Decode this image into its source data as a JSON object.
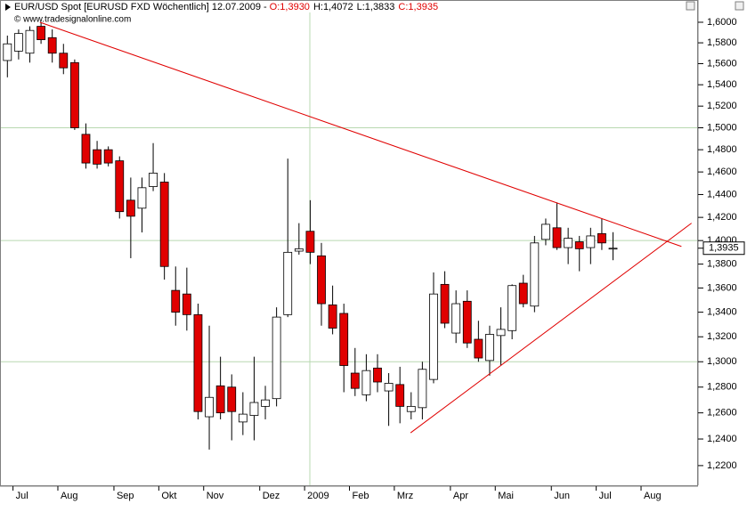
{
  "chart_data": {
    "type": "candlestick",
    "title": "EUR/USD Spot [EURUSD FXD  Wöchentlich] 12.07.2009 -",
    "ohlc_labels": [
      {
        "text": "O:1,3930",
        "color": "#e00000"
      },
      {
        "text": "H:1,4072",
        "color": "#000000"
      },
      {
        "text": "L:1,3833",
        "color": "#000000"
      },
      {
        "text": "C:1,3935",
        "color": "#e00000"
      }
    ],
    "subtitle": "© www.tradesignalonline.com",
    "categories": [
      null,
      "Jul",
      null,
      null,
      null,
      "Aug",
      null,
      null,
      null,
      null,
      "Sep",
      null,
      null,
      null,
      "Okt",
      null,
      null,
      null,
      "Nov",
      null,
      null,
      null,
      null,
      "Dez",
      null,
      null,
      null,
      "2009",
      null,
      null,
      null,
      "Feb",
      null,
      null,
      null,
      "Mrz",
      null,
      null,
      null,
      null,
      "Apr",
      null,
      null,
      null,
      "Mai",
      null,
      null,
      null,
      null,
      "Jun",
      null,
      null,
      null,
      "Jul",
      null,
      null,
      null,
      "Aug",
      null,
      null,
      null,
      null
    ],
    "open": [
      1.563,
      1.572,
      1.57,
      1.596,
      1.585,
      1.57,
      1.561,
      1.494,
      1.48,
      1.48,
      1.47,
      1.435,
      1.428,
      1.447,
      1.451,
      1.358,
      1.355,
      1.338,
      1.257,
      1.281,
      1.28,
      1.253,
      1.258,
      1.265,
      1.271,
      1.338,
      1.391,
      1.408,
      1.387,
      1.346,
      1.339,
      1.291,
      1.274,
      1.295,
      1.277,
      1.282,
      1.261,
      1.264,
      1.286,
      1.363,
      1.323,
      1.349,
      1.318,
      1.301,
      1.321,
      1.325,
      1.364,
      1.345,
      1.401,
      1.411,
      1.394,
      1.399,
      1.394,
      1.406,
      1.393,
      null,
      null,
      null,
      null,
      null,
      null,
      null
    ],
    "high": [
      1.587,
      1.593,
      1.596,
      1.6,
      1.593,
      1.579,
      1.564,
      1.504,
      1.488,
      1.483,
      1.474,
      1.455,
      1.455,
      1.486,
      1.459,
      1.378,
      1.377,
      1.347,
      1.329,
      1.304,
      1.29,
      1.276,
      1.304,
      1.281,
      1.344,
      1.472,
      1.415,
      1.435,
      1.398,
      1.362,
      1.347,
      1.311,
      1.306,
      1.306,
      1.291,
      1.296,
      1.276,
      1.3,
      1.373,
      1.374,
      1.358,
      1.358,
      1.333,
      1.329,
      1.344,
      1.363,
      1.371,
      1.404,
      1.419,
      1.433,
      1.411,
      1.404,
      1.411,
      1.419,
      1.4072,
      null,
      null,
      null,
      null,
      null,
      null,
      null
    ],
    "low": [
      1.547,
      1.564,
      1.561,
      1.579,
      1.561,
      1.55,
      1.498,
      1.463,
      1.463,
      1.465,
      1.419,
      1.385,
      1.407,
      1.443,
      1.367,
      1.329,
      1.325,
      1.255,
      1.232,
      1.255,
      1.239,
      1.243,
      1.239,
      1.255,
      1.265,
      1.336,
      1.388,
      1.38,
      1.329,
      1.322,
      1.276,
      1.273,
      1.269,
      1.276,
      1.25,
      1.252,
      1.255,
      1.255,
      1.283,
      1.327,
      1.315,
      1.311,
      1.3,
      1.289,
      1.297,
      1.318,
      1.344,
      1.34,
      1.396,
      1.392,
      1.38,
      1.374,
      1.38,
      1.392,
      1.3833,
      null,
      null,
      null,
      null,
      null,
      null,
      null
    ],
    "close": [
      1.579,
      1.589,
      1.592,
      1.583,
      1.57,
      1.556,
      1.5,
      1.468,
      1.467,
      1.468,
      1.425,
      1.421,
      1.446,
      1.459,
      1.378,
      1.34,
      1.338,
      1.261,
      1.272,
      1.26,
      1.261,
      1.259,
      1.268,
      1.27,
      1.336,
      1.39,
      1.393,
      1.39,
      1.347,
      1.327,
      1.297,
      1.279,
      1.293,
      1.284,
      1.283,
      1.265,
      1.265,
      1.294,
      1.355,
      1.331,
      1.347,
      1.315,
      1.303,
      1.322,
      1.326,
      1.362,
      1.347,
      1.398,
      1.414,
      1.394,
      1.402,
      1.393,
      1.404,
      1.398,
      1.3935,
      null,
      null,
      null,
      null,
      null,
      null,
      null
    ],
    "up_color": "#ffffff",
    "down_color": "#e00000",
    "log_scale": true,
    "ylim": [
      1.2054,
      1.6096
    ],
    "yticks": [
      {
        "value": 1.22,
        "label": "1,2200"
      },
      {
        "value": 1.24,
        "label": "1,2400"
      },
      {
        "value": 1.26,
        "label": "1,2600"
      },
      {
        "value": 1.28,
        "label": "1,2800"
      },
      {
        "value": 1.3,
        "label": "1,3000"
      },
      {
        "value": 1.32,
        "label": "1,3200"
      },
      {
        "value": 1.34,
        "label": "1,3400"
      },
      {
        "value": 1.36,
        "label": "1,3600"
      },
      {
        "value": 1.38,
        "label": "1,3800"
      },
      {
        "value": 1.4,
        "label": "1,4000"
      },
      {
        "value": 1.42,
        "label": "1,4200"
      },
      {
        "value": 1.44,
        "label": "1,4400"
      },
      {
        "value": 1.46,
        "label": "1,4600"
      },
      {
        "value": 1.48,
        "label": "1,4800"
      },
      {
        "value": 1.5,
        "label": "1,5000"
      },
      {
        "value": 1.52,
        "label": "1,5200"
      },
      {
        "value": 1.54,
        "label": "1,5400"
      },
      {
        "value": 1.56,
        "label": "1,5600"
      },
      {
        "value": 1.58,
        "label": "1,5800"
      },
      {
        "value": 1.6,
        "label": "1,6000"
      }
    ],
    "grid_y": [
      1.3,
      1.4,
      1.5
    ],
    "grid_color": "#b8d8b0",
    "last_price": {
      "value": 1.3935,
      "label": "1,3935"
    },
    "trendlines": [
      {
        "x": [
          2.9,
          60.1
        ],
        "values": [
          1.6,
          1.395
        ],
        "color": "#e00000"
      },
      {
        "x": [
          35.95,
          61.0
        ],
        "values": [
          1.2447,
          1.415
        ],
        "color": "#e00000"
      }
    ]
  }
}
